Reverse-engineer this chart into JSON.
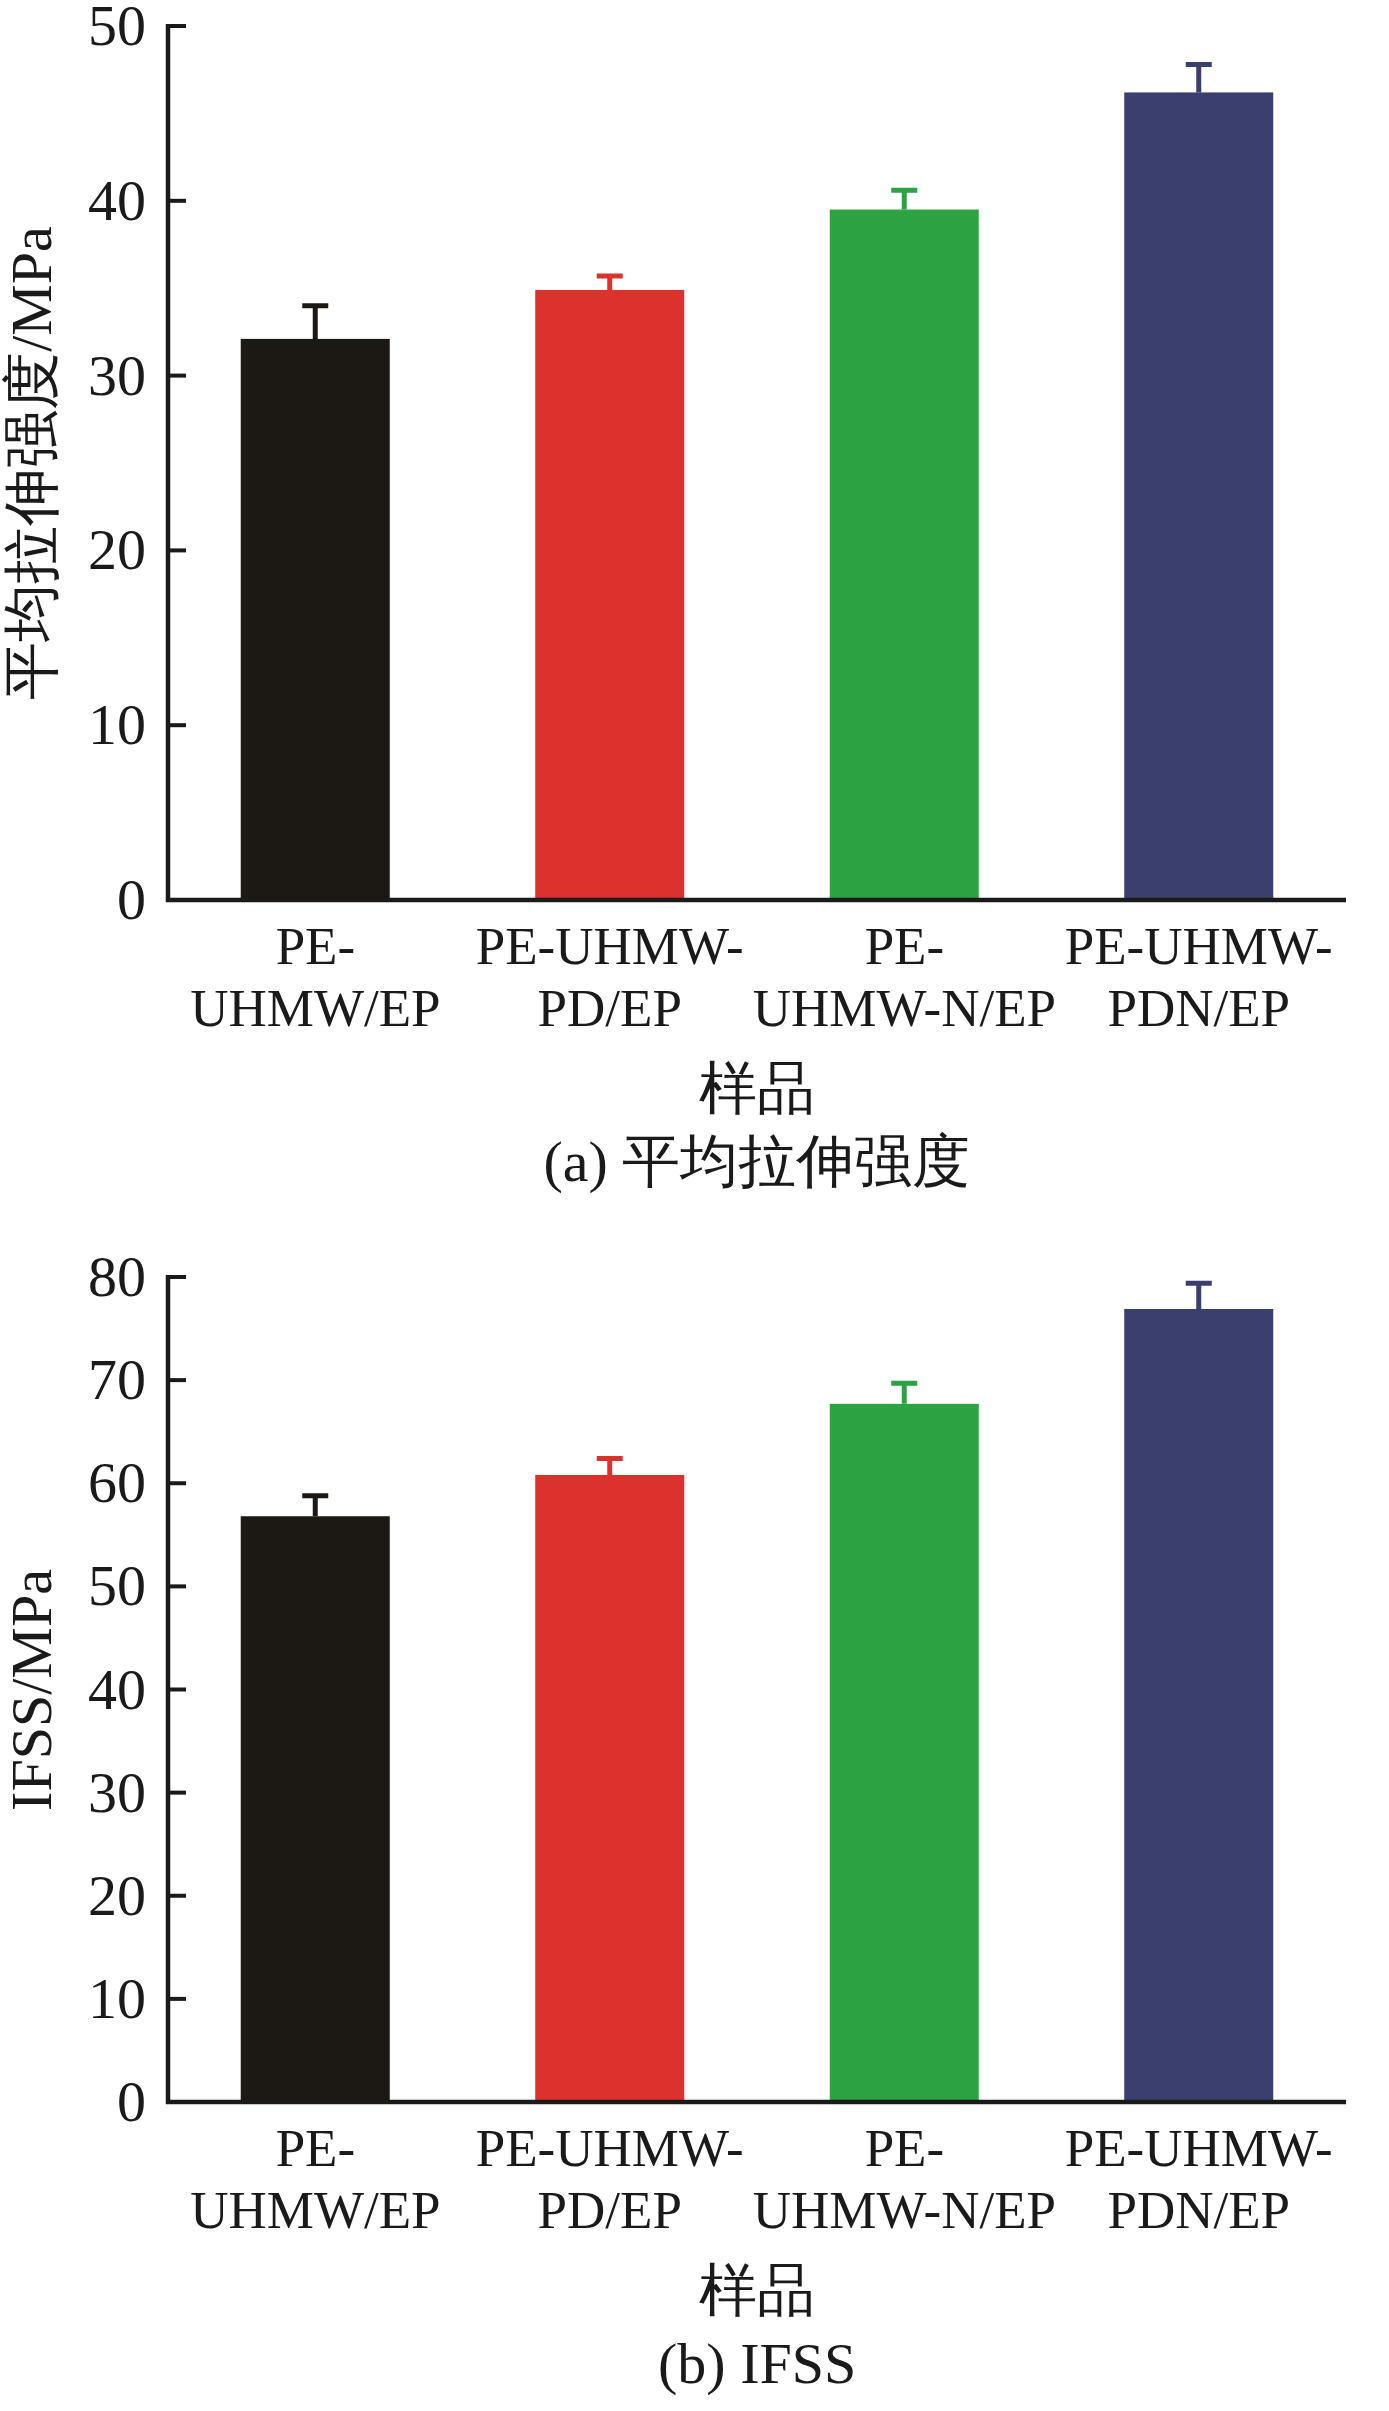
{
  "chart_data": [
    {
      "type": "bar",
      "title": "(a) 平均拉伸强度",
      "xlabel": "样品",
      "ylabel": "平均拉伸强度/MPa",
      "categories": [
        "PE-\nUHMW/EP",
        "PE-UHMW-\nPD/EP",
        "PE-\nUHMW-N/EP",
        "PE-UHMW-\nPDN/EP"
      ],
      "values": [
        32.1,
        34.9,
        39.5,
        46.2
      ],
      "errors": [
        [
          32.1,
          34.0
        ],
        [
          34.9,
          35.7
        ],
        [
          39.5,
          40.6
        ],
        [
          46.2,
          47.8
        ]
      ],
      "colors": [
        "#1c1915",
        "#dc322d",
        "#2ca242",
        "#3b3f6e"
      ],
      "ylim": [
        0,
        50
      ],
      "yticks": [
        0,
        10,
        20,
        30,
        40,
        50
      ]
    },
    {
      "type": "bar",
      "title": "(b) IFSS",
      "xlabel": "样品",
      "ylabel": "IFSS/MPa",
      "categories": [
        "PE-\nUHMW/EP",
        "PE-UHMW-\nPD/EP",
        "PE-\nUHMW-N/EP",
        "PE-UHMW-\nPDN/EP"
      ],
      "values": [
        56.8,
        60.8,
        67.7,
        76.9
      ],
      "errors": [
        [
          56.8,
          58.8
        ],
        [
          60.8,
          62.4
        ],
        [
          67.7,
          69.7
        ],
        [
          76.9,
          79.4
        ]
      ],
      "colors": [
        "#1c1915",
        "#dc322d",
        "#2ca242",
        "#3b3f6e"
      ],
      "ylim": [
        0,
        80
      ],
      "yticks": [
        0,
        10,
        20,
        30,
        40,
        50,
        60,
        70,
        80
      ]
    }
  ]
}
